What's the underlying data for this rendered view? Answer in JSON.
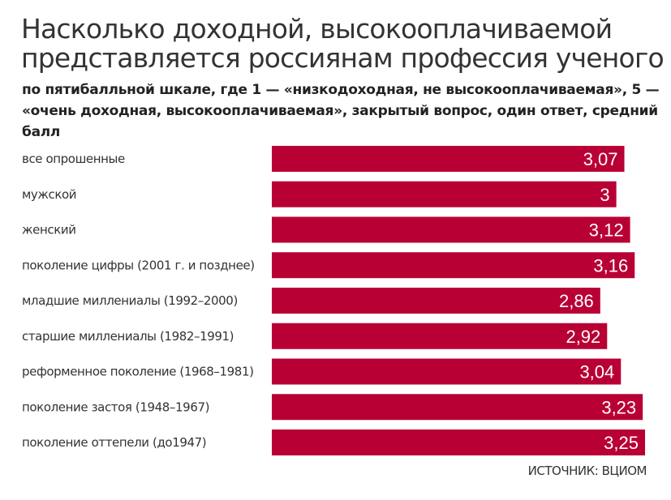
{
  "chart_data": {
    "type": "bar",
    "orientation": "horizontal",
    "title": "Насколько доходной, высокооплачиваемой представляется россиянам профессия ученого",
    "subtitle": "по пятибалльной шкале, где 1 — «низкодоходная, не высокооплачиваемая», 5 — «очень доходная, высокооплачиваемая», закрытый вопрос, один ответ, средний балл",
    "categories": [
      "все опрошенные",
      "мужской",
      "женский",
      "поколение цифры (2001 г. и позднее)",
      "младшие миллениалы (1992–2000)",
      "старшие миллениалы (1982–1991)",
      "реформенное поколение (1968–1981)",
      "поколение застоя (1948–1967)",
      "поколение оттепели (до1947)"
    ],
    "values": [
      3.07,
      3,
      3.12,
      3.16,
      2.86,
      2.92,
      3.04,
      3.23,
      3.25
    ],
    "value_labels": [
      "3,07",
      "3",
      "3,12",
      "3,16",
      "2,86",
      "2,92",
      "3,04",
      "3,23",
      "3,25"
    ],
    "xlim": [
      0,
      3.25
    ],
    "grid": false,
    "bar_color": "#b80035",
    "source": "ИСТОЧНИК: ВЦИОМ"
  }
}
